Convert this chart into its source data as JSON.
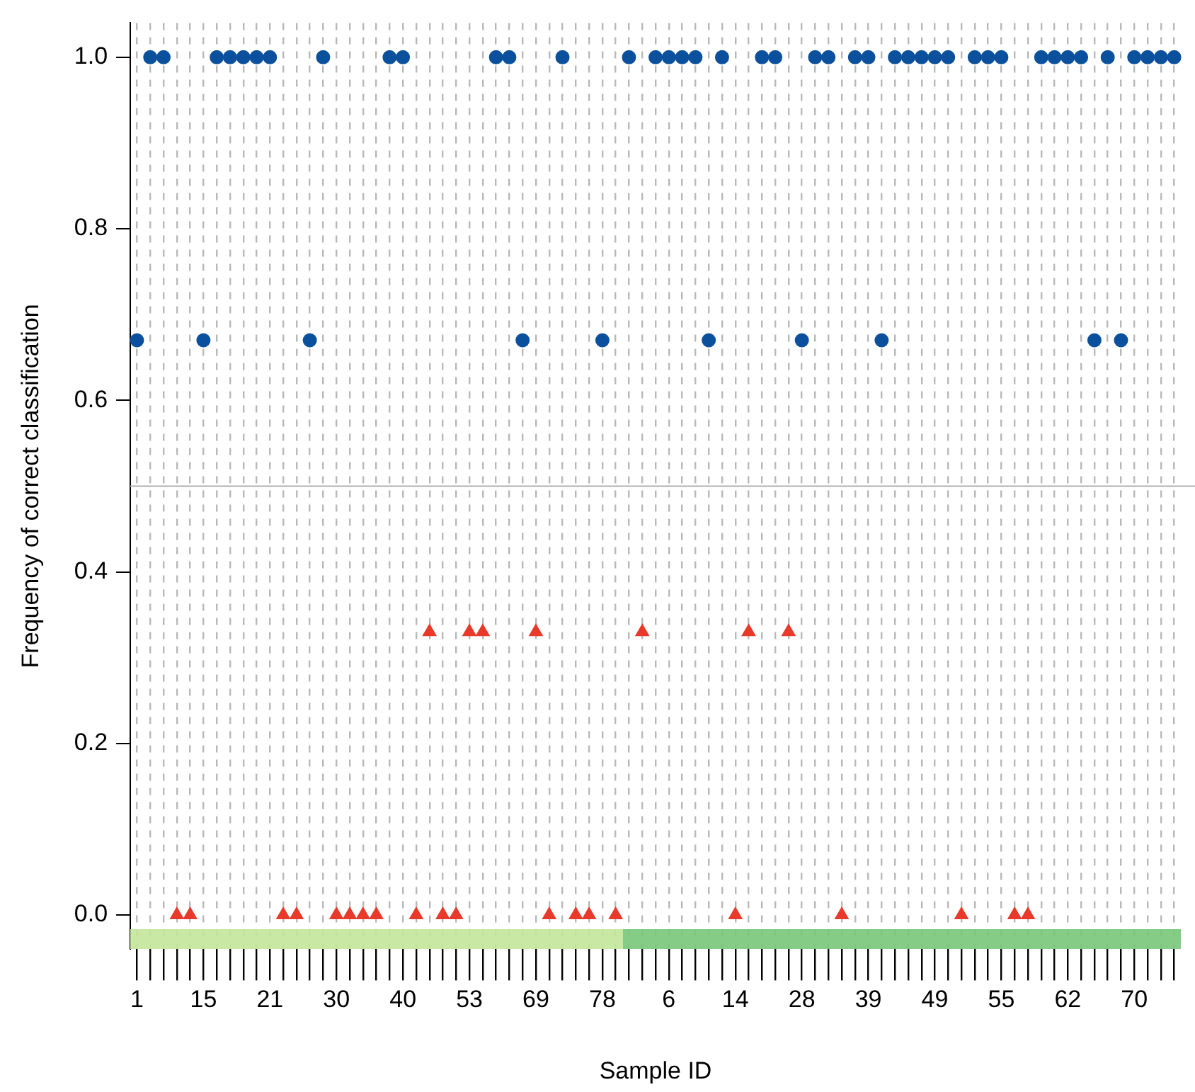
{
  "chart_data": {
    "type": "scatter",
    "xlabel": "Sample ID",
    "ylabel": "Frequency of correct classification",
    "categories": [
      "1",
      null,
      null,
      null,
      null,
      "15",
      null,
      null,
      null,
      null,
      "21",
      null,
      null,
      null,
      null,
      "30",
      null,
      null,
      null,
      null,
      "40",
      null,
      null,
      null,
      null,
      "53",
      null,
      null,
      null,
      null,
      "69",
      null,
      null,
      null,
      null,
      "78",
      null,
      null,
      null,
      null,
      "6",
      null,
      null,
      null,
      null,
      "14",
      null,
      null,
      null,
      null,
      "28",
      null,
      null,
      null,
      null,
      "39",
      null,
      null,
      null,
      null,
      "49",
      null,
      null,
      null,
      null,
      "55",
      null,
      null,
      null,
      null,
      "62",
      null,
      null,
      null,
      null,
      "70",
      null,
      null,
      null
    ],
    "series": [
      {
        "color": "#0b509c",
        "marker": "circle",
        "values": [
          0.67,
          1,
          1,
          null,
          null,
          0.67,
          1,
          1,
          1,
          1,
          1,
          null,
          null,
          0.67,
          1,
          null,
          null,
          null,
          null,
          1,
          1,
          null,
          null,
          null,
          null,
          null,
          null,
          1,
          1,
          0.67,
          null,
          null,
          1,
          null,
          null,
          0.67,
          null,
          1,
          null,
          1,
          1,
          1,
          1,
          0.67,
          1,
          null,
          null,
          1,
          1,
          null,
          0.67,
          1,
          1,
          null,
          1,
          1,
          0.67,
          1,
          1,
          1,
          1,
          1,
          null,
          1,
          1,
          1,
          null,
          null,
          1,
          1,
          1,
          1,
          0.67,
          1,
          0.67,
          1,
          1,
          1,
          1
        ]
      },
      {
        "color": "#e8392b",
        "marker": "triangle",
        "values": [
          null,
          null,
          null,
          0,
          0,
          null,
          null,
          null,
          null,
          null,
          null,
          0,
          0,
          null,
          null,
          0,
          0,
          0,
          0,
          null,
          null,
          0,
          0.33,
          0,
          0,
          0.33,
          0.33,
          null,
          null,
          null,
          0.33,
          0,
          null,
          0,
          0,
          null,
          0,
          null,
          0.33,
          null,
          null,
          null,
          null,
          null,
          null,
          0,
          0.33,
          null,
          null,
          0.33,
          null,
          null,
          null,
          0,
          null,
          null,
          null,
          null,
          null,
          null,
          null,
          null,
          0,
          null,
          null,
          null,
          0,
          0,
          null,
          null,
          null,
          null,
          null,
          null,
          null,
          null,
          null,
          null,
          null
        ]
      }
    ],
    "ylim": [
      -0.04,
      1.04
    ],
    "yticks": [
      {
        "value": 0,
        "label": "0.0"
      },
      {
        "value": 0.2,
        "label": "0.2"
      },
      {
        "value": 0.4,
        "label": "0.4"
      },
      {
        "value": 0.6,
        "label": "0.6"
      },
      {
        "value": 0.8,
        "label": "0.8"
      },
      {
        "value": 1,
        "label": "1.0"
      }
    ],
    "grid": "x",
    "legend": false,
    "ref_lines": [
      {
        "axis": "y",
        "value": 0.5,
        "color": "#b0b0b0"
      }
    ]
  }
}
